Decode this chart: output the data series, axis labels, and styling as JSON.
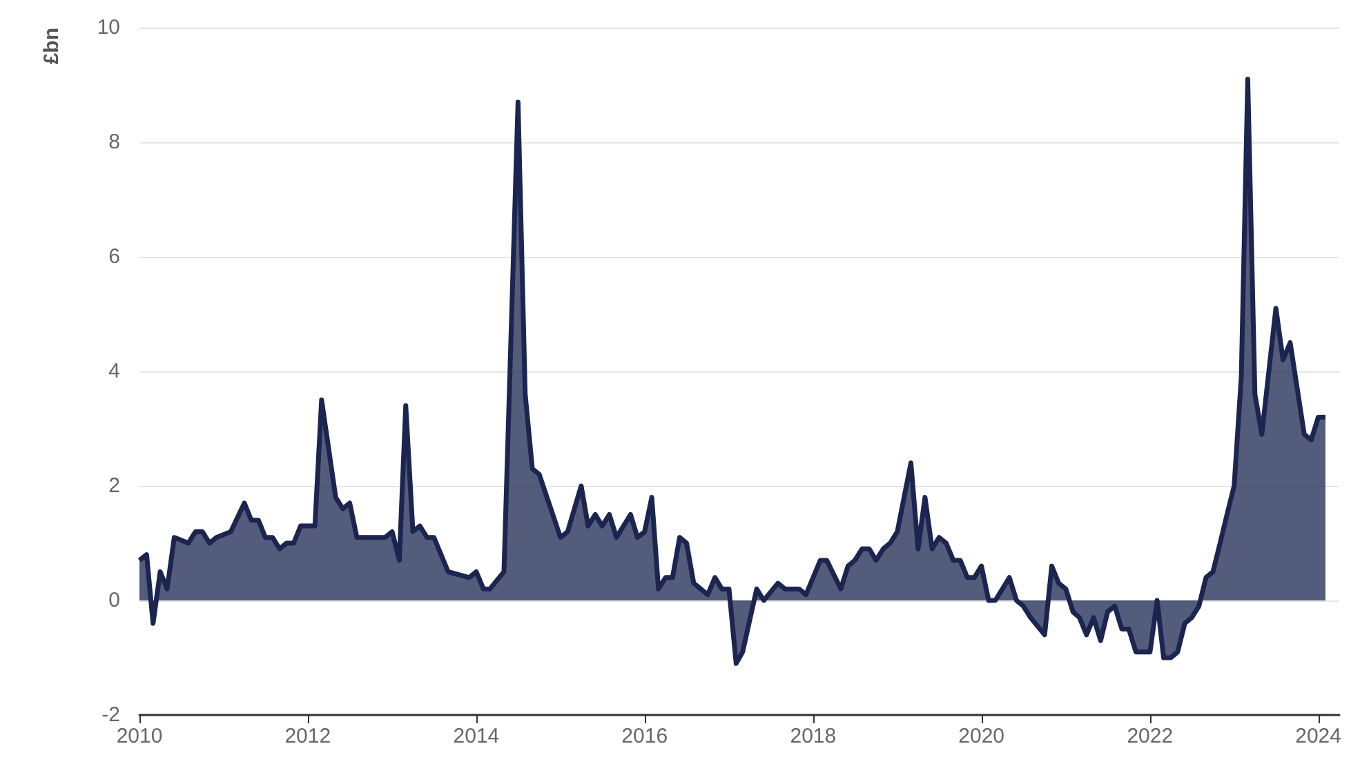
{
  "chart_data": {
    "type": "area",
    "ylabel": "£bn",
    "x": [
      "2010-01",
      "2010-02",
      "2010-03",
      "2010-04",
      "2010-05",
      "2010-06",
      "2010-08",
      "2010-09",
      "2010-10",
      "2010-11",
      "2010-12",
      "2011-02",
      "2011-04",
      "2011-05",
      "2011-06",
      "2011-07",
      "2011-08",
      "2011-09",
      "2011-10",
      "2011-11",
      "2011-12",
      "2012-01",
      "2012-02",
      "2012-03",
      "2012-05",
      "2012-06",
      "2012-07",
      "2012-08",
      "2012-09",
      "2012-11",
      "2012-12",
      "2013-01",
      "2013-02",
      "2013-03",
      "2013-04",
      "2013-05",
      "2013-06",
      "2013-07",
      "2013-09",
      "2013-12",
      "2014-01",
      "2014-02",
      "2014-03",
      "2014-05",
      "2014-07",
      "2014-08",
      "2014-09",
      "2014-10",
      "2015-01",
      "2015-02",
      "2015-04",
      "2015-05",
      "2015-06",
      "2015-07",
      "2015-08",
      "2015-09",
      "2015-11",
      "2015-12",
      "2016-01",
      "2016-02",
      "2016-03",
      "2016-04",
      "2016-05",
      "2016-06",
      "2016-07",
      "2016-08",
      "2016-09",
      "2016-10",
      "2016-11",
      "2016-12",
      "2017-01",
      "2017-02",
      "2017-03",
      "2017-05",
      "2017-06",
      "2017-08",
      "2017-09",
      "2017-10",
      "2017-11",
      "2017-12",
      "2018-02",
      "2018-03",
      "2018-05",
      "2018-06",
      "2018-07",
      "2018-08",
      "2018-09",
      "2018-10",
      "2018-11",
      "2018-12",
      "2019-01",
      "2019-03",
      "2019-04",
      "2019-05",
      "2019-06",
      "2019-07",
      "2019-08",
      "2019-09",
      "2019-10",
      "2019-11",
      "2019-12",
      "2020-01",
      "2020-02",
      "2020-03",
      "2020-04",
      "2020-05",
      "2020-06",
      "2020-07",
      "2020-08",
      "2020-10",
      "2020-11",
      "2020-12",
      "2021-01",
      "2021-02",
      "2021-03",
      "2021-04",
      "2021-05",
      "2021-06",
      "2021-07",
      "2021-08",
      "2021-09",
      "2021-10",
      "2021-11",
      "2022-01",
      "2022-02",
      "2022-03",
      "2022-04",
      "2022-05",
      "2022-06",
      "2022-07",
      "2022-08",
      "2022-09",
      "2022-10",
      "2022-11",
      "2022-12",
      "2023-01",
      "2023-02",
      "2023-03",
      "2023-04",
      "2023-05",
      "2023-07",
      "2023-08",
      "2023-09",
      "2023-11",
      "2023-12",
      "2024-01",
      "2024-02"
    ],
    "series": [
      {
        "color": "#1b2550",
        "values": [
          0.7,
          0.8,
          -0.4,
          0.5,
          0.2,
          1.1,
          1.0,
          1.2,
          1.2,
          1.0,
          1.1,
          1.2,
          1.7,
          1.4,
          1.4,
          1.1,
          1.1,
          0.9,
          1.0,
          1.0,
          1.3,
          1.3,
          1.3,
          3.5,
          1.8,
          1.6,
          1.7,
          1.1,
          1.1,
          1.1,
          1.1,
          1.2,
          0.7,
          3.4,
          1.2,
          1.3,
          1.1,
          1.1,
          0.5,
          0.4,
          0.5,
          0.2,
          0.2,
          0.5,
          8.7,
          3.6,
          2.3,
          2.2,
          1.1,
          1.2,
          2.0,
          1.3,
          1.5,
          1.3,
          1.5,
          1.1,
          1.5,
          1.1,
          1.2,
          1.8,
          0.2,
          0.4,
          0.4,
          1.1,
          1.0,
          0.3,
          0.2,
          0.1,
          0.4,
          0.2,
          0.2,
          -1.1,
          -0.9,
          0.2,
          0.0,
          0.3,
          0.2,
          0.2,
          0.2,
          0.1,
          0.7,
          0.7,
          0.2,
          0.6,
          0.7,
          0.9,
          0.9,
          0.7,
          0.9,
          1.0,
          1.2,
          2.4,
          0.9,
          1.8,
          0.9,
          1.1,
          1.0,
          0.7,
          0.7,
          0.4,
          0.4,
          0.6,
          0.0,
          0.0,
          0.2,
          0.4,
          0.0,
          -0.1,
          -0.3,
          -0.6,
          0.6,
          0.3,
          0.2,
          -0.2,
          -0.3,
          -0.6,
          -0.3,
          -0.7,
          -0.2,
          -0.1,
          -0.5,
          -0.5,
          -0.9,
          -0.9,
          0.0,
          -1.0,
          -1.0,
          -0.9,
          -0.4,
          -0.3,
          -0.1,
          0.4,
          0.5,
          1.0,
          1.5,
          2.0,
          3.9,
          9.1,
          3.6,
          2.9,
          5.1,
          4.2,
          4.5,
          2.9,
          2.8,
          3.2,
          3.2
        ]
      }
    ],
    "xlim": [
      "2010-01",
      "2024-04"
    ],
    "xticks": [
      "2010",
      "2012",
      "2014",
      "2016",
      "2018",
      "2020",
      "2022",
      "2024"
    ],
    "ylim": [
      -2,
      10
    ],
    "yticks": [
      -2,
      0,
      2,
      4,
      6,
      8,
      10
    ],
    "grid": "y"
  }
}
